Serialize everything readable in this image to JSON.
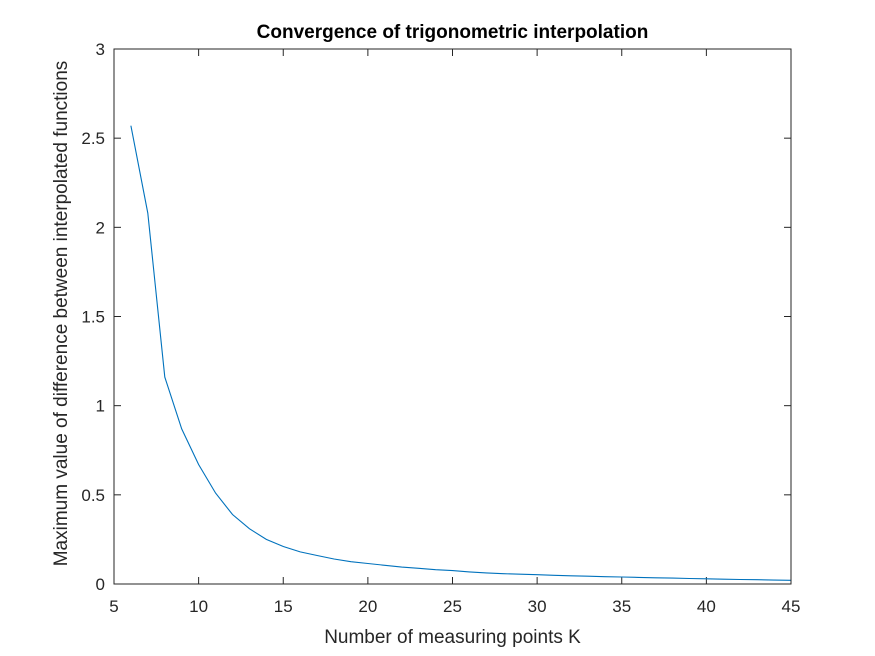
{
  "chart_data": {
    "type": "line",
    "title": "Convergence of trigonometric interpolation",
    "xlabel": "Number of measuring points K",
    "ylabel": "Maximum value of difference between  interpolated functions",
    "xlim": [
      5,
      45
    ],
    "ylim": [
      0,
      3
    ],
    "x_ticks": [
      5,
      10,
      15,
      20,
      25,
      30,
      35,
      40,
      45
    ],
    "y_ticks": [
      0,
      0.5,
      1,
      1.5,
      2,
      2.5,
      3
    ],
    "x_tick_labels": [
      "5",
      "10",
      "15",
      "20",
      "25",
      "30",
      "35",
      "40",
      "45"
    ],
    "y_tick_labels": [
      "0",
      "0.5",
      "1",
      "1.5",
      "2",
      "2.5",
      "3"
    ],
    "grid": false,
    "line_color": "#0072BD",
    "series": [
      {
        "x": [
          6,
          7,
          8,
          9,
          10,
          11,
          12,
          13,
          14,
          15,
          16,
          17,
          18,
          19,
          20,
          21,
          22,
          23,
          24,
          25,
          26,
          27,
          28,
          29,
          30,
          31,
          32,
          33,
          34,
          35,
          36,
          37,
          38,
          39,
          40,
          41,
          42,
          43,
          44,
          45
        ],
        "y": [
          2.57,
          2.08,
          1.16,
          0.87,
          0.67,
          0.51,
          0.39,
          0.31,
          0.25,
          0.21,
          0.18,
          0.16,
          0.14,
          0.125,
          0.115,
          0.105,
          0.095,
          0.088,
          0.08,
          0.075,
          0.068,
          0.062,
          0.058,
          0.055,
          0.052,
          0.049,
          0.046,
          0.044,
          0.041,
          0.039,
          0.037,
          0.035,
          0.033,
          0.031,
          0.029,
          0.027,
          0.025,
          0.024,
          0.022,
          0.021
        ]
      }
    ]
  }
}
